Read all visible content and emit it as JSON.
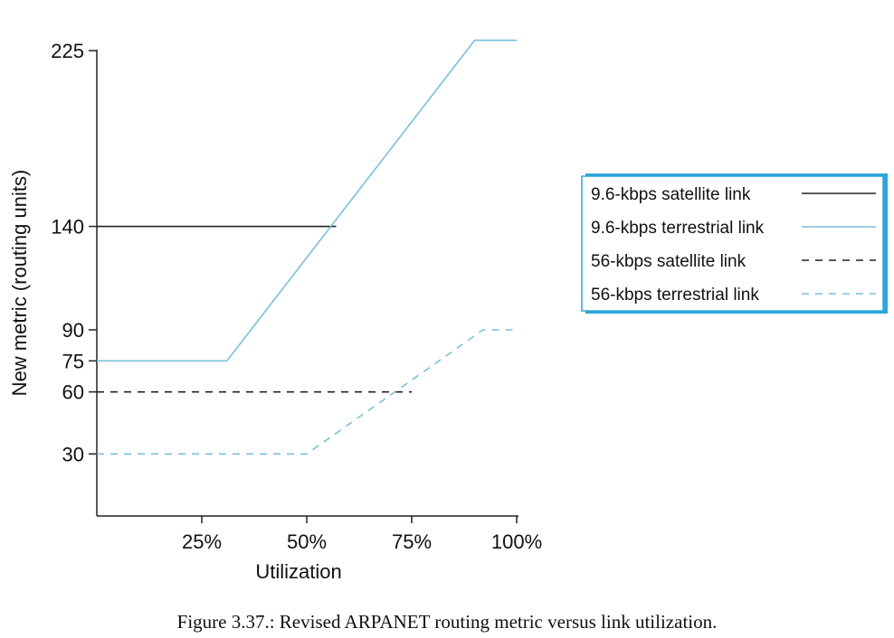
{
  "chart_data": {
    "type": "line",
    "xlabel": "Utilization",
    "ylabel": "New metric (routing units)",
    "xlim": [
      0,
      100
    ],
    "ylim": [
      0,
      235
    ],
    "x_ticks": [
      {
        "value": 25,
        "label": "25%"
      },
      {
        "value": 50,
        "label": "50%"
      },
      {
        "value": 75,
        "label": "75%"
      },
      {
        "value": 100,
        "label": "100%"
      }
    ],
    "y_ticks": [
      {
        "value": 30,
        "label": "30"
      },
      {
        "value": 60,
        "label": "60"
      },
      {
        "value": 75,
        "label": "75"
      },
      {
        "value": 90,
        "label": "90"
      },
      {
        "value": 140,
        "label": "140"
      },
      {
        "value": 225,
        "label": "225"
      }
    ],
    "grid": false,
    "legend_position": "right",
    "series": [
      {
        "name": "9.6-kbps satellite link",
        "color": "#222222",
        "style": "solid",
        "points": [
          [
            0,
            140
          ],
          [
            57,
            140
          ]
        ]
      },
      {
        "name": "9.6-kbps terrestrial link",
        "color": "#7bbfdc",
        "style": "solid",
        "points": [
          [
            0,
            75
          ],
          [
            31,
            75
          ],
          [
            90,
            230
          ],
          [
            100,
            230
          ]
        ]
      },
      {
        "name": "56-kbps satellite link",
        "color": "#222222",
        "style": "dashed",
        "points": [
          [
            0,
            60
          ],
          [
            75,
            60
          ]
        ]
      },
      {
        "name": "56-kbps terrestrial link",
        "color": "#7bbfdc",
        "style": "dashed",
        "points": [
          [
            0,
            30
          ],
          [
            50,
            30
          ],
          [
            92,
            90
          ],
          [
            100,
            90
          ]
        ]
      }
    ]
  },
  "caption": "Figure 3.37.: Revised ARPANET routing metric versus link utilization."
}
